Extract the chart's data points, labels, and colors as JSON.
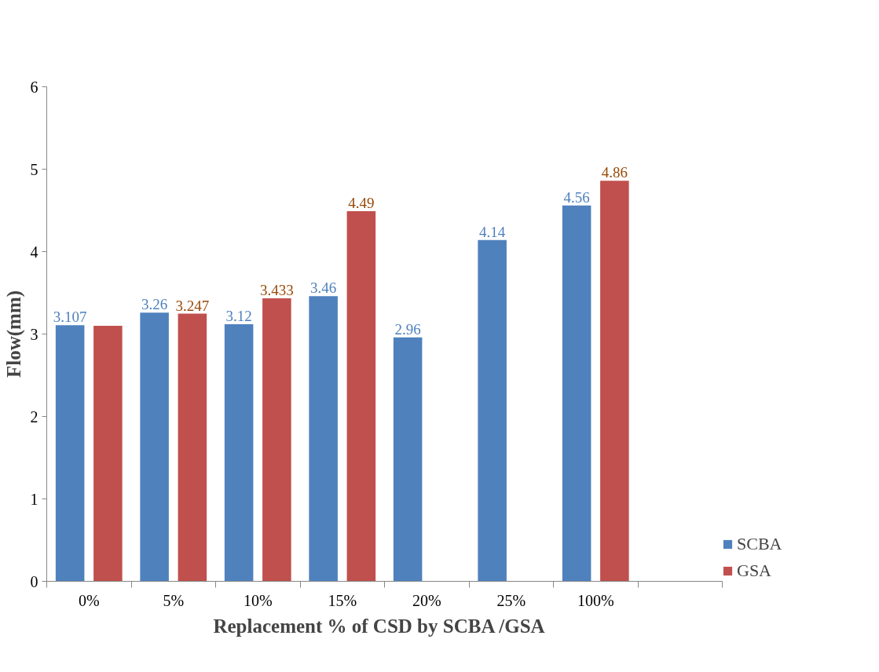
{
  "chart_data": {
    "type": "bar",
    "xlabel": "Replacement  % of CSD  by SCBA /GSA",
    "ylabel": "Flow(mm)",
    "categories": [
      "0%",
      "5%",
      "10%",
      "15%",
      "20%",
      "25%",
      "100%",
      null
    ],
    "series": [
      {
        "name": "SCBA",
        "color": "#4f81bd",
        "values": [
          3.107,
          3.26,
          3.12,
          3.46,
          2.96,
          4.14,
          4.56,
          null
        ],
        "value_labels": [
          "3.107",
          "3.26",
          "3.12",
          "3.46",
          "2.96",
          "4.14",
          "4.56",
          null
        ]
      },
      {
        "name": "GSA",
        "color": "#c0504d",
        "values": [
          3.1,
          3.247,
          3.433,
          4.49,
          null,
          null,
          4.86,
          null
        ],
        "value_labels": [
          null,
          "3.247",
          "3.433",
          "4.49",
          null,
          null,
          "4.86",
          null
        ]
      }
    ],
    "ylim": [
      0,
      6
    ],
    "yticks": [
      0,
      1,
      2,
      3,
      4,
      5,
      6
    ],
    "grid": false,
    "legend": "right"
  }
}
